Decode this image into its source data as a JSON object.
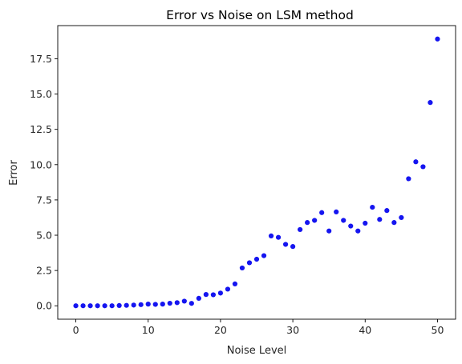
{
  "chart_data": {
    "type": "scatter",
    "title": "Error vs Noise on LSM method",
    "xlabel": "Noise Level",
    "ylabel": "Error",
    "xlim": [
      -2.5,
      52.5
    ],
    "ylim": [
      -0.95,
      19.85
    ],
    "x_ticks": [
      0,
      10,
      20,
      30,
      40,
      50
    ],
    "x_tick_labels": [
      "0",
      "10",
      "20",
      "30",
      "40",
      "50"
    ],
    "y_ticks": [
      0,
      2.5,
      5,
      7.5,
      10,
      12.5,
      15,
      17.5
    ],
    "y_tick_labels": [
      "0.0",
      "2.5",
      "5.0",
      "7.5",
      "10.0",
      "12.5",
      "15.0",
      "17.5"
    ],
    "grid": false,
    "marker_color": "#1515f0",
    "series": [
      {
        "x": [
          0,
          1,
          2,
          3,
          4,
          5,
          6,
          7,
          8,
          9,
          10,
          11,
          12,
          13,
          14,
          15,
          16,
          17,
          18,
          19,
          20,
          21,
          22,
          23,
          24,
          25,
          26,
          27,
          28,
          29,
          30,
          31,
          32,
          33,
          34,
          35,
          36,
          37,
          38,
          39,
          40,
          41,
          42,
          43,
          44,
          45,
          46,
          47,
          48,
          49,
          50
        ],
        "y": [
          0.0,
          0.0,
          0.0,
          0.0,
          0.0,
          0.0,
          0.02,
          0.03,
          0.05,
          0.08,
          0.12,
          0.1,
          0.12,
          0.18,
          0.22,
          0.33,
          0.17,
          0.53,
          0.8,
          0.78,
          0.9,
          1.18,
          1.55,
          2.68,
          3.05,
          3.3,
          3.55,
          4.95,
          4.85,
          4.35,
          4.2,
          5.4,
          5.9,
          6.05,
          6.6,
          5.3,
          6.65,
          6.05,
          5.65,
          5.3,
          5.85,
          6.98,
          6.12,
          6.75,
          5.9,
          6.25,
          9.0,
          10.2,
          9.85,
          14.4,
          18.9
        ]
      }
    ]
  }
}
